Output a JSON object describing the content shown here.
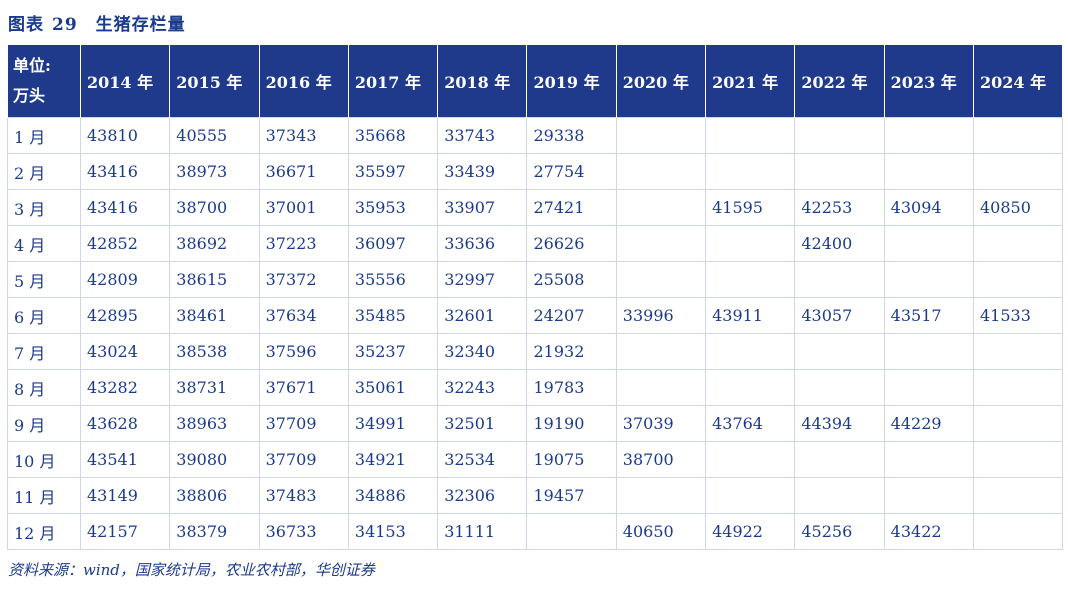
{
  "title": {
    "prefix": "图表",
    "number": "29",
    "text": "生猪存栏量"
  },
  "table": {
    "unit_line1": "单位:",
    "unit_line2": "万头",
    "years": [
      "2014 年",
      "2015 年",
      "2016 年",
      "2017 年",
      "2018 年",
      "2019 年",
      "2020 年",
      "2021 年",
      "2022 年",
      "2023 年",
      "2024 年"
    ],
    "rows": [
      {
        "month": "1 月",
        "values": [
          "43810",
          "40555",
          "37343",
          "35668",
          "33743",
          "29338",
          "",
          "",
          "",
          "",
          ""
        ]
      },
      {
        "month": "2 月",
        "values": [
          "43416",
          "38973",
          "36671",
          "35597",
          "33439",
          "27754",
          "",
          "",
          "",
          "",
          ""
        ]
      },
      {
        "month": "3 月",
        "values": [
          "43416",
          "38700",
          "37001",
          "35953",
          "33907",
          "27421",
          "",
          "41595",
          "42253",
          "43094",
          "40850"
        ]
      },
      {
        "month": "4 月",
        "values": [
          "42852",
          "38692",
          "37223",
          "36097",
          "33636",
          "26626",
          "",
          "",
          "42400",
          "",
          ""
        ]
      },
      {
        "month": "5 月",
        "values": [
          "42809",
          "38615",
          "37372",
          "35556",
          "32997",
          "25508",
          "",
          "",
          "",
          "",
          ""
        ]
      },
      {
        "month": "6 月",
        "values": [
          "42895",
          "38461",
          "37634",
          "35485",
          "32601",
          "24207",
          "33996",
          "43911",
          "43057",
          "43517",
          "41533"
        ]
      },
      {
        "month": "7 月",
        "values": [
          "43024",
          "38538",
          "37596",
          "35237",
          "32340",
          "21932",
          "",
          "",
          "",
          "",
          ""
        ]
      },
      {
        "month": "8 月",
        "values": [
          "43282",
          "38731",
          "37671",
          "35061",
          "32243",
          "19783",
          "",
          "",
          "",
          "",
          ""
        ]
      },
      {
        "month": "9 月",
        "values": [
          "43628",
          "38963",
          "37709",
          "34991",
          "32501",
          "19190",
          "37039",
          "43764",
          "44394",
          "44229",
          ""
        ]
      },
      {
        "month": "10 月",
        "values": [
          "43541",
          "39080",
          "37709",
          "34921",
          "32534",
          "19075",
          "38700",
          "",
          "",
          "",
          ""
        ]
      },
      {
        "month": "11 月",
        "values": [
          "43149",
          "38806",
          "37483",
          "34886",
          "32306",
          "19457",
          "",
          "",
          "",
          "",
          ""
        ]
      },
      {
        "month": "12 月",
        "values": [
          "42157",
          "38379",
          "36733",
          "34153",
          "31111",
          "",
          "40650",
          "44922",
          "45256",
          "43422",
          ""
        ]
      }
    ]
  },
  "source": "资料来源：wind，国家统计局，农业农村部，华创证券"
}
